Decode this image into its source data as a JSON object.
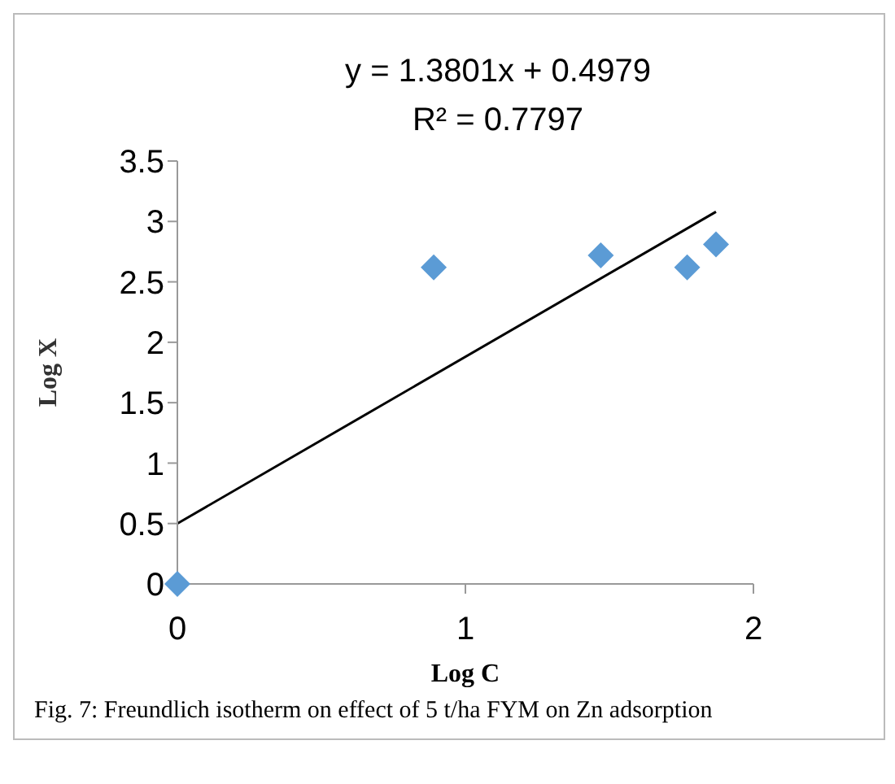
{
  "chart_data": {
    "type": "scatter",
    "xlabel": "Log C",
    "ylabel": "Log X",
    "annotations": [
      "y = 1.3801x + 0.4979",
      "R² = 0.7797",
      "Fig. 7: Freundlich isotherm on effect of 5 t/ha FYM on Zn adsorption"
    ],
    "series": [
      {
        "color": "#5b9bd5",
        "marker": "diamond",
        "x": [
          0,
          0.89,
          1.47,
          1.77,
          1.87
        ],
        "values": [
          0,
          2.62,
          2.72,
          2.62,
          2.81
        ]
      },
      {
        "type": "line",
        "color": "#000000",
        "marker": "none",
        "line_style": "solid",
        "x": [
          0,
          1.87
        ],
        "values": [
          0.5,
          3.08
        ]
      }
    ],
    "xlim": [
      0,
      2
    ],
    "xticks": [
      0,
      1,
      2
    ],
    "ylim": [
      0,
      3.5
    ],
    "yticks": [
      0,
      0.5,
      1,
      1.5,
      2,
      2.5,
      3,
      3.5
    ],
    "grid": false,
    "legend": false
  }
}
